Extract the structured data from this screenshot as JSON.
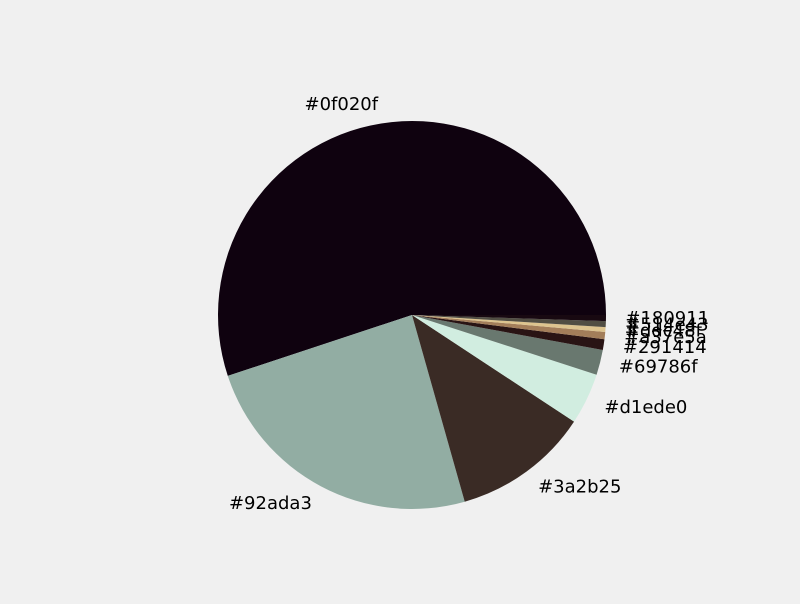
{
  "chart_data": {
    "type": "pie",
    "title": "",
    "labels": [
      "#0f020f",
      "#92ada3",
      "#3a2b25",
      "#d1ede0",
      "#69786f",
      "#291414",
      "#a37e5a",
      "#ddc48f",
      "#514e43",
      "#180911"
    ],
    "values": [
      55.3,
      24.4,
      11.4,
      4.3,
      2.1,
      0.9,
      0.6,
      0.4,
      0.5,
      0.5
    ],
    "colors": [
      "#0f020f",
      "#92ada3",
      "#3a2b25",
      "#d1ede0",
      "#69786f",
      "#291414",
      "#a37e5a",
      "#ddc48f",
      "#514e43",
      "#180911"
    ],
    "start_angle_deg": 0,
    "direction": "counterclockwise",
    "legend": "none"
  }
}
